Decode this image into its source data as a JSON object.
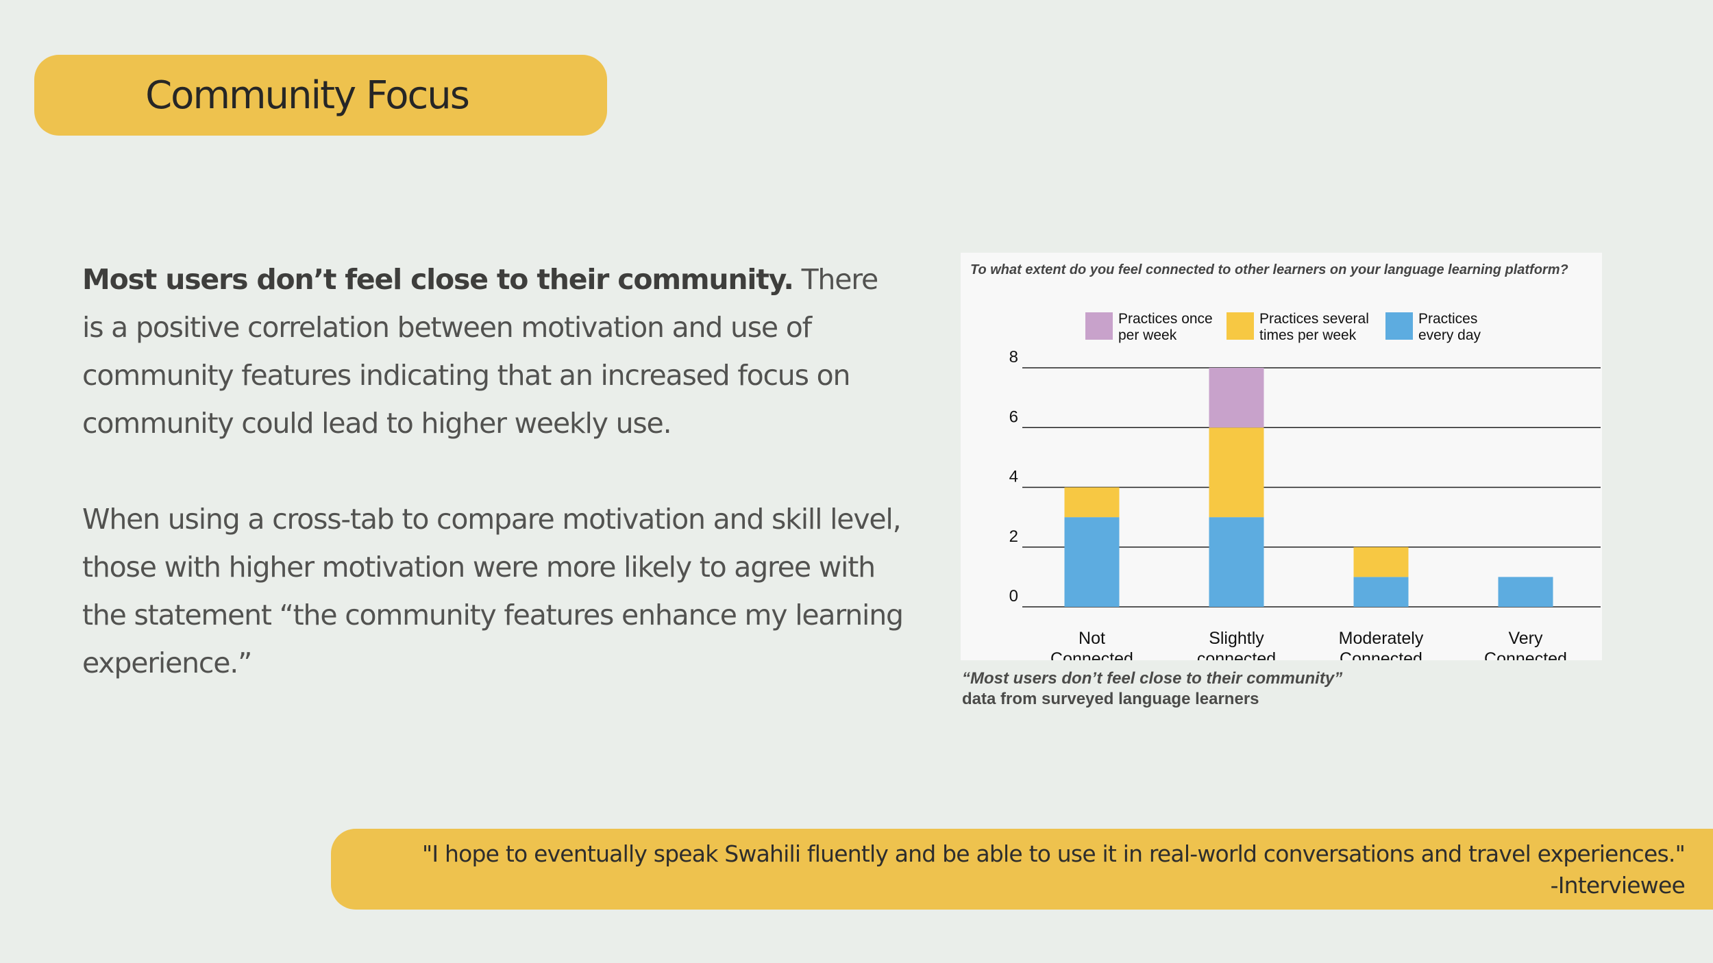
{
  "slide": {
    "title": "Community Focus",
    "paragraph1_bold": "Most users don’t feel close to their community.",
    "paragraph1_rest": " There is a positive correlation between motivation and use of community features indicating that an increased focus on community could lead to higher weekly use.",
    "paragraph2": "When using a cross-tab to compare motivation and skill level, those with higher motivation were more likely to agree with the statement “the community features enhance my learning experience.”",
    "quote": "\"I hope to eventually speak Swahili fluently and be able to use it in real-world conversations and travel experiences.\"",
    "quote_attribution": "-Interviewee",
    "caption_quote": "“Most users don’t feel close to their community”",
    "caption_source": "data from surveyed language learners",
    "colors": {
      "accent": "#eec24e",
      "background": "#eaeeea"
    }
  },
  "chart_data": {
    "type": "bar",
    "stacked": true,
    "title": "To what extent do you feel connected to other learners on your language learning platform?",
    "categories": [
      [
        "Not",
        "Connected"
      ],
      [
        "Slightly",
        "connected"
      ],
      [
        "Moderately",
        "Connected"
      ],
      [
        "Very",
        "Connected"
      ]
    ],
    "series": [
      {
        "name": "Practices every day",
        "legend_lines": [
          "Practices",
          "every day"
        ],
        "color": "#5dace0",
        "values": [
          3,
          3,
          1,
          1
        ]
      },
      {
        "name": "Practices several times per week",
        "legend_lines": [
          "Practices several",
          "times per week"
        ],
        "color": "#f7c843",
        "values": [
          1,
          3,
          1,
          0
        ]
      },
      {
        "name": "Practices once per week",
        "legend_lines": [
          "Practices once",
          "per week"
        ],
        "color": "#c8a2cb",
        "values": [
          0,
          2,
          0,
          0
        ]
      }
    ],
    "legend_order": [
      2,
      1,
      0
    ],
    "yticks": [
      0,
      2,
      4,
      6,
      8
    ],
    "ylim": [
      0,
      8
    ],
    "grid": true,
    "legend_position": "top"
  }
}
